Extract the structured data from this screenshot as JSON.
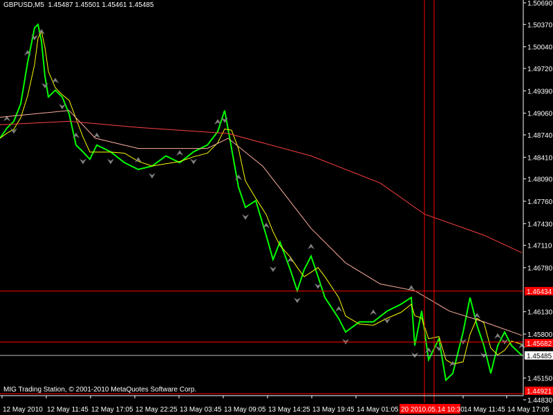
{
  "header": {
    "symbol": "GBPUSD,M5",
    "open": "1.45487",
    "high": "1.45501",
    "low": "1.45461",
    "close": "1.45485"
  },
  "footer": {
    "copyright": "MIG Trading Station, © 2001-2010 MetaQuotes Software Corp."
  },
  "colors": {
    "background": "#000000",
    "price_line": "#00ff00",
    "fast_ma": "#ffff00",
    "mid_ma": "#ffb0a0",
    "slow_ma": "#ff4040",
    "hline": "#ff0000",
    "bid_line": "#c0c0c0",
    "fractal": "#808080"
  },
  "price_axis": {
    "ticks": [
      "1.50690",
      "1.50370",
      "1.50040",
      "1.49720",
      "1.49390",
      "1.49060",
      "1.48740",
      "1.48410",
      "1.48090",
      "1.47760",
      "1.47430",
      "1.47110",
      "1.46780",
      "1.46130",
      "1.45800",
      "1.45150",
      "1.44830"
    ],
    "hline_labels": [
      "1.46434",
      "1.45682",
      "1.44921"
    ],
    "bid_label": "1.45485"
  },
  "time_axis": {
    "ticks": [
      "12 May 2010",
      "12 May 11:45",
      "12 May 17:05",
      "12 May 22:25",
      "13 May 03:45",
      "13 May 09:05",
      "13 May 14:25",
      "13 May 19:45",
      "14 May 01:05",
      "14 May 11:45",
      "14 May 17:05"
    ],
    "crosshair_label": "20 2010.05.14 10:30"
  },
  "vertical_lines": [
    "14 09:20",
    "14 10:30"
  ],
  "chart_data": {
    "type": "line",
    "ylim": [
      1.4483,
      1.5069
    ],
    "series": [
      {
        "key": "price",
        "points": [
          [
            "12 06:10",
            1.4869
          ],
          [
            "12 07:00",
            1.4884
          ],
          [
            "12 07:50",
            1.4894
          ],
          [
            "12 08:40",
            1.492
          ],
          [
            "12 09:30",
            1.4981
          ],
          [
            "12 10:20",
            1.5032
          ],
          [
            "12 10:45",
            1.5037
          ],
          [
            "12 11:10",
            1.5012
          ],
          [
            "12 11:35",
            1.4961
          ],
          [
            "12 12:00",
            1.493
          ],
          [
            "12 12:50",
            1.494
          ],
          [
            "12 13:40",
            1.493
          ],
          [
            "12 14:30",
            1.4905
          ],
          [
            "12 15:20",
            1.4859
          ],
          [
            "12 16:10",
            1.4849
          ],
          [
            "12 17:00",
            1.4838
          ],
          [
            "12 17:50",
            1.4859
          ],
          [
            "12 19:30",
            1.4849
          ],
          [
            "12 21:10",
            1.4833
          ],
          [
            "12 22:50",
            1.4823
          ],
          [
            "13 00:30",
            1.4828
          ],
          [
            "13 02:10",
            1.4843
          ],
          [
            "13 03:50",
            1.4833
          ],
          [
            "13 05:30",
            1.4849
          ],
          [
            "13 07:10",
            1.4859
          ],
          [
            "13 08:25",
            1.4879
          ],
          [
            "13 09:15",
            1.491
          ],
          [
            "13 10:05",
            1.4854
          ],
          [
            "13 10:55",
            1.4797
          ],
          [
            "13 11:45",
            1.4767
          ],
          [
            "13 13:00",
            1.4777
          ],
          [
            "13 14:15",
            1.4726
          ],
          [
            "13 15:05",
            1.469
          ],
          [
            "13 15:55",
            1.4716
          ],
          [
            "13 17:10",
            1.4675
          ],
          [
            "13 18:00",
            1.4644
          ],
          [
            "13 18:50",
            1.4675
          ],
          [
            "13 19:40",
            1.4695
          ],
          [
            "13 20:30",
            1.4665
          ],
          [
            "13 21:20",
            1.4634
          ],
          [
            "13 23:00",
            1.4603
          ],
          [
            "13 23:50",
            1.4583
          ],
          [
            "14 01:30",
            1.4598
          ],
          [
            "14 03:10",
            1.4598
          ],
          [
            "14 04:50",
            1.4614
          ],
          [
            "14 06:30",
            1.4624
          ],
          [
            "14 07:45",
            1.4634
          ],
          [
            "14 08:10",
            1.4563
          ],
          [
            "14 09:00",
            1.4614
          ],
          [
            "14 09:50",
            1.4542
          ],
          [
            "14 11:05",
            1.4573
          ],
          [
            "14 11:55",
            1.4512
          ],
          [
            "14 12:45",
            1.4522
          ],
          [
            "14 14:00",
            1.4583
          ],
          [
            "14 14:50",
            1.4634
          ],
          [
            "14 15:40",
            1.4593
          ],
          [
            "14 16:30",
            1.4563
          ],
          [
            "14 17:20",
            1.4522
          ],
          [
            "14 18:10",
            1.4563
          ],
          [
            "14 19:00",
            1.4583
          ],
          [
            "14 19:50",
            1.4563
          ],
          [
            "14 21:05",
            1.45485
          ]
        ]
      },
      {
        "key": "mid_ma",
        "points": [
          [
            "12 06:10",
            1.49
          ],
          [
            "12 14:30",
            1.491
          ],
          [
            "12 17:40",
            1.4869
          ],
          [
            "12 22:50",
            1.4854
          ],
          [
            "13 07:10",
            1.4854
          ],
          [
            "13 09:40",
            1.4869
          ],
          [
            "13 13:50",
            1.4828
          ],
          [
            "13 19:40",
            1.4736
          ],
          [
            "13 23:50",
            1.4685
          ],
          [
            "14 04:00",
            1.4654
          ],
          [
            "14 08:10",
            1.4644
          ],
          [
            "14 12:20",
            1.4614
          ],
          [
            "14 16:30",
            1.4598
          ],
          [
            "14 21:05",
            1.4578
          ]
        ]
      },
      {
        "key": "slow_ma",
        "points": [
          [
            "12 06:10",
            1.4889
          ],
          [
            "12 14:30",
            1.4894
          ],
          [
            "12 22:50",
            1.4885
          ],
          [
            "13 09:40",
            1.4876
          ],
          [
            "13 19:40",
            1.4843
          ],
          [
            "14 04:00",
            1.4803
          ],
          [
            "14 09:20",
            1.4757
          ],
          [
            "14 16:30",
            1.4726
          ],
          [
            "14 21:05",
            1.47
          ]
        ]
      }
    ]
  }
}
